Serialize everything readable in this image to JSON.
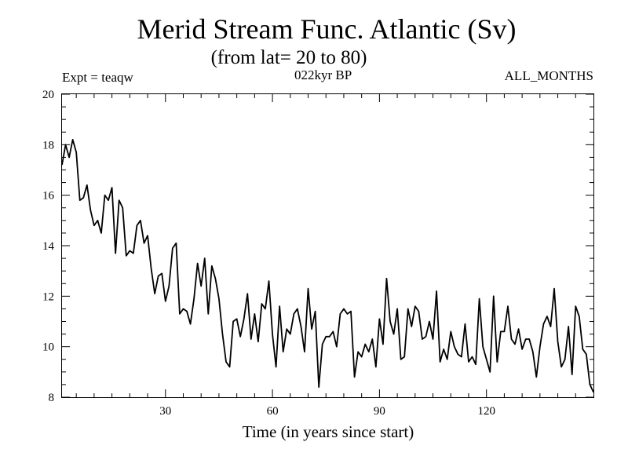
{
  "chart_data": {
    "type": "line",
    "title": "Merid Stream Func. Atlantic (Sv)",
    "subtitle": "(from lat= 20 to 80)",
    "annotations": {
      "experiment": "Expt = teaqw",
      "period": "022kyr BP",
      "months": "ALL_MONTHS"
    },
    "xlabel": "Time (in years since start)",
    "ylabel": "",
    "xlim": [
      1,
      150
    ],
    "ylim": [
      8,
      20
    ],
    "xticks": [
      30,
      60,
      90,
      120
    ],
    "yticks": [
      8,
      10,
      12,
      14,
      16,
      18,
      20
    ],
    "grid": false,
    "series": [
      {
        "name": "Merid Stream Func. Atlantic",
        "color": "#000000",
        "x": [
          1,
          2,
          3,
          4,
          5,
          6,
          7,
          8,
          9,
          10,
          11,
          12,
          13,
          14,
          15,
          16,
          17,
          18,
          19,
          20,
          21,
          22,
          23,
          24,
          25,
          26,
          27,
          28,
          29,
          30,
          31,
          32,
          33,
          34,
          35,
          36,
          37,
          38,
          39,
          40,
          41,
          42,
          43,
          44,
          45,
          46,
          47,
          48,
          49,
          50,
          51,
          52,
          53,
          54,
          55,
          56,
          57,
          58,
          59,
          60,
          61,
          62,
          63,
          64,
          65,
          66,
          67,
          68,
          69,
          70,
          71,
          72,
          73,
          74,
          75,
          76,
          77,
          78,
          79,
          80,
          81,
          82,
          83,
          84,
          85,
          86,
          87,
          88,
          89,
          90,
          91,
          92,
          93,
          94,
          95,
          96,
          97,
          98,
          99,
          100,
          101,
          102,
          103,
          104,
          105,
          106,
          107,
          108,
          109,
          110,
          111,
          112,
          113,
          114,
          115,
          116,
          117,
          118,
          119,
          120,
          121,
          122,
          123,
          124,
          125,
          126,
          127,
          128,
          129,
          130,
          131,
          132,
          133,
          134,
          135,
          136,
          137,
          138,
          139,
          140,
          141,
          142,
          143,
          144,
          145,
          146,
          147,
          148,
          149,
          150
        ],
        "values": [
          17.2,
          18.0,
          17.5,
          18.2,
          17.7,
          15.8,
          15.9,
          16.4,
          15.4,
          14.8,
          15.0,
          14.5,
          16.0,
          15.8,
          16.3,
          13.7,
          15.8,
          15.5,
          13.6,
          13.8,
          13.7,
          14.8,
          15.0,
          14.1,
          14.4,
          13.1,
          12.1,
          12.8,
          12.9,
          11.8,
          12.4,
          13.9,
          14.1,
          11.3,
          11.5,
          11.4,
          10.9,
          11.9,
          13.3,
          12.4,
          13.5,
          11.3,
          13.2,
          12.7,
          11.9,
          10.5,
          9.4,
          9.2,
          11.0,
          11.1,
          10.4,
          11.1,
          12.1,
          10.3,
          11.3,
          10.2,
          11.7,
          11.5,
          12.6,
          10.5,
          9.2,
          11.6,
          9.8,
          10.7,
          10.5,
          11.3,
          11.5,
          10.8,
          9.8,
          12.3,
          10.7,
          11.4,
          8.4,
          10.1,
          10.4,
          10.4,
          10.6,
          10.0,
          11.3,
          11.5,
          11.3,
          11.4,
          8.8,
          9.8,
          9.6,
          10.1,
          9.8,
          10.3,
          9.2,
          11.1,
          10.1,
          12.7,
          11.0,
          10.5,
          11.5,
          9.5,
          9.6,
          11.5,
          10.8,
          11.6,
          11.4,
          10.3,
          10.4,
          11.0,
          10.3,
          12.2,
          9.4,
          9.9,
          9.5,
          10.6,
          10.0,
          9.7,
          9.6,
          10.9,
          9.4,
          9.6,
          9.3,
          11.9,
          10.0,
          9.5,
          9.0,
          12.0,
          9.4,
          10.6,
          10.6,
          11.6,
          10.3,
          10.1,
          10.7,
          9.9,
          10.3,
          10.3,
          9.8,
          8.8,
          10.0,
          10.9,
          11.2,
          10.8,
          12.3,
          10.2,
          9.2,
          9.5,
          10.8,
          8.9,
          11.6,
          11.2,
          9.9,
          9.7,
          8.5,
          8.2
        ]
      }
    ]
  }
}
